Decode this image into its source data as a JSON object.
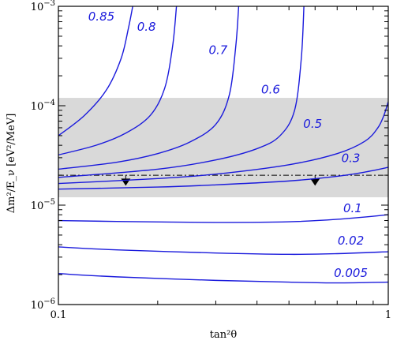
{
  "chart_data": {
    "type": "line",
    "xlabel": "tan²θ",
    "ylabel": "Δm²/E_ν [eV²/MeV]",
    "xscale": "log",
    "yscale": "log",
    "xlim": [
      0.1,
      1
    ],
    "ylim": [
      1e-06,
      0.001
    ],
    "x_tick_labels": [
      {
        "value": 0.1,
        "label": "0.1"
      },
      {
        "value": 1,
        "label": "1"
      }
    ],
    "y_tick_labels": [
      {
        "value": 1e-06,
        "base": "10",
        "exp": "−6"
      },
      {
        "value": 1e-05,
        "base": "10",
        "exp": "−5"
      },
      {
        "value": 0.0001,
        "base": "10",
        "exp": "−4"
      },
      {
        "value": 0.001,
        "base": "10",
        "exp": "−3"
      }
    ],
    "shaded_band": {
      "y_range": [
        1.2e-05,
        0.00012
      ],
      "color": "#d9d9d9"
    },
    "reference_line": {
      "y": 2e-05,
      "style": "dash-dot"
    },
    "markers": [
      {
        "x": 0.16,
        "y": 1.72e-05,
        "shape": "down-arrow"
      },
      {
        "x": 0.6,
        "y": 1.72e-05,
        "shape": "down-arrow"
      }
    ],
    "curve_color": "#1a1adc",
    "series": [
      {
        "name": "0.85",
        "x": [
          0.1,
          0.12,
          0.14,
          0.155,
          0.163,
          0.168
        ],
        "y": [
          5e-05,
          8e-05,
          0.000145,
          0.0003,
          0.0006,
          0.001
        ]
      },
      {
        "name": "0.8",
        "x": [
          0.1,
          0.13,
          0.16,
          0.19,
          0.21,
          0.222,
          0.228
        ],
        "y": [
          3.2e-05,
          4e-05,
          5.3e-05,
          8e-05,
          0.00015,
          0.0004,
          0.001
        ]
      },
      {
        "name": "0.7",
        "x": [
          0.1,
          0.15,
          0.2,
          0.25,
          0.3,
          0.33,
          0.345,
          0.352
        ],
        "y": [
          2.3e-05,
          2.7e-05,
          3.3e-05,
          4.3e-05,
          6.5e-05,
          0.00013,
          0.0004,
          0.001
        ]
      },
      {
        "name": "0.6",
        "x": [
          0.1,
          0.2,
          0.3,
          0.4,
          0.47,
          0.52,
          0.545,
          0.555
        ],
        "y": [
          1.9e-05,
          2.3e-05,
          2.85e-05,
          3.7e-05,
          5e-05,
          9e-05,
          0.0003,
          0.001
        ]
      },
      {
        "name": "0.5",
        "x": [
          0.1,
          0.2,
          0.3,
          0.5,
          0.7,
          0.85,
          0.93,
          0.97,
          1.0
        ],
        "y": [
          1.65e-05,
          1.85e-05,
          2.05e-05,
          2.55e-05,
          3.3e-05,
          4.4e-05,
          6e-05,
          8e-05,
          0.00011
        ]
      },
      {
        "name": "0.3",
        "x": [
          0.1,
          0.2,
          0.3,
          0.5,
          0.7,
          0.85,
          1.0
        ],
        "y": [
          1.45e-05,
          1.52e-05,
          1.6e-05,
          1.75e-05,
          1.95e-05,
          2.15e-05,
          2.4e-05
        ]
      },
      {
        "name": "0.1",
        "x": [
          0.1,
          0.15,
          0.3,
          0.5,
          0.7,
          1.0
        ],
        "y": [
          7e-06,
          6.85e-06,
          6.7e-06,
          6.8e-06,
          7.2e-06,
          8e-06
        ]
      },
      {
        "name": "0.02",
        "x": [
          0.1,
          0.15,
          0.3,
          0.5,
          0.7,
          1.0
        ],
        "y": [
          3.8e-06,
          3.55e-06,
          3.3e-06,
          3.2e-06,
          3.25e-06,
          3.4e-06
        ]
      },
      {
        "name": "0.005",
        "x": [
          0.1,
          0.15,
          0.3,
          0.5,
          0.7,
          1.0
        ],
        "y": [
          2.05e-06,
          1.9e-06,
          1.75e-06,
          1.68e-06,
          1.65e-06,
          1.68e-06
        ]
      }
    ],
    "curve_labels": [
      {
        "text": "0.85",
        "x": 0.135,
        "y": 0.00072
      },
      {
        "text": "0.8",
        "x": 0.185,
        "y": 0.00057
      },
      {
        "text": "0.7",
        "x": 0.305,
        "y": 0.00033
      },
      {
        "text": "0.6",
        "x": 0.44,
        "y": 0.000133
      },
      {
        "text": "0.5",
        "x": 0.59,
        "y": 6e-05
      },
      {
        "text": "0.3",
        "x": 0.77,
        "y": 2.7e-05
      },
      {
        "text": "0.1",
        "x": 0.78,
        "y": 8.5e-06
      },
      {
        "text": "0.02",
        "x": 0.77,
        "y": 4e-06
      },
      {
        "text": "0.005",
        "x": 0.77,
        "y": 1.9e-06
      }
    ]
  }
}
